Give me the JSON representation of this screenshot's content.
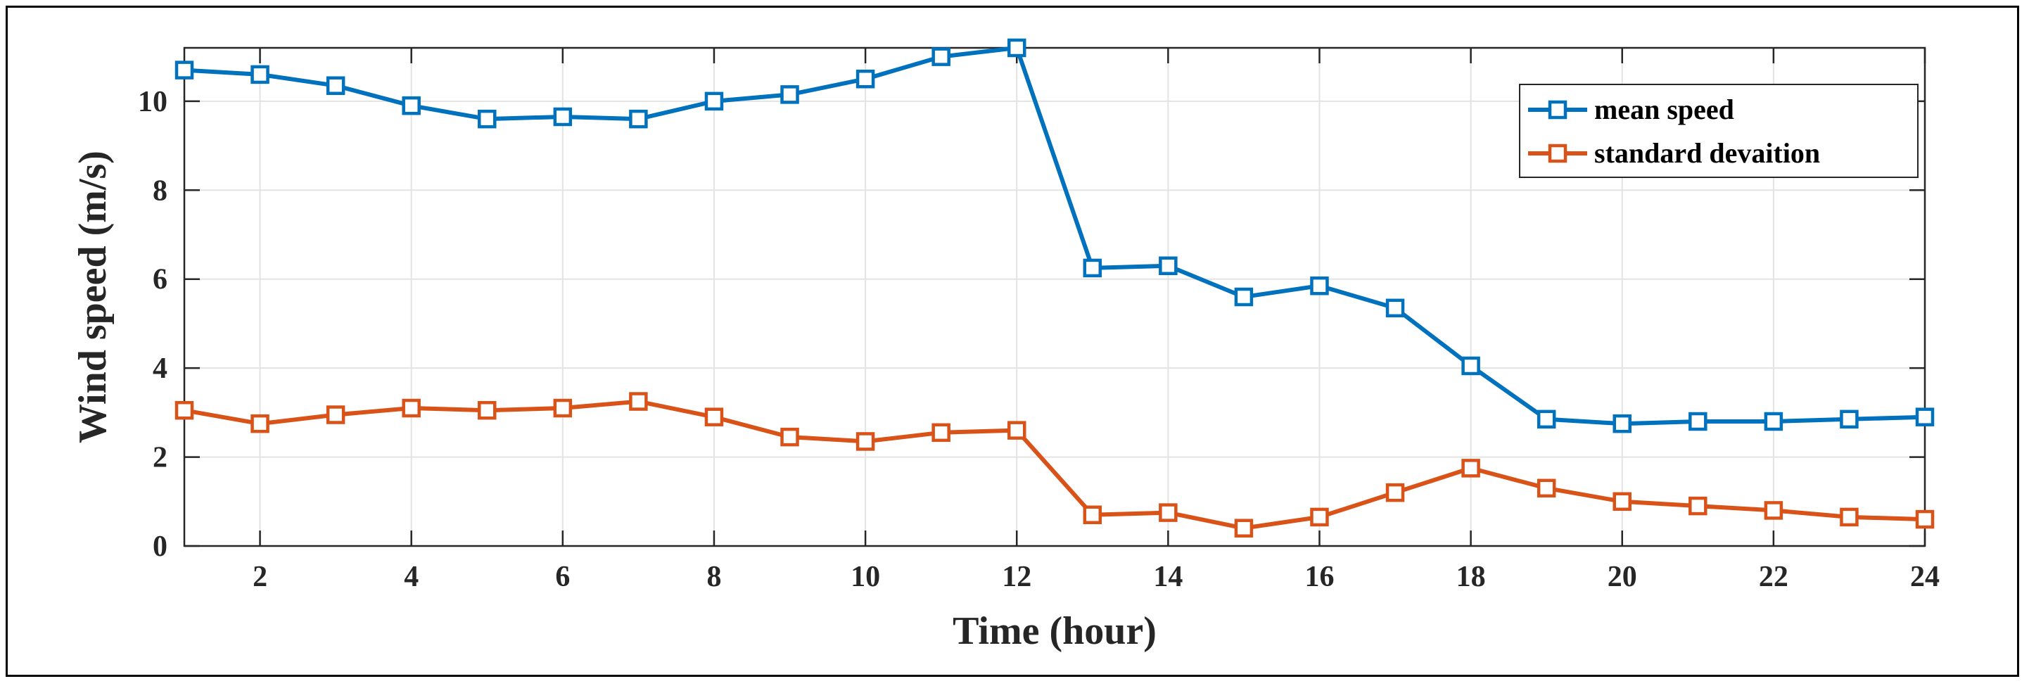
{
  "chart_data": {
    "type": "line",
    "title": "",
    "xlabel": "Time (hour)",
    "ylabel": "Wind speed (m/s)",
    "xlim": [
      1,
      24
    ],
    "ylim": [
      0,
      11.2
    ],
    "xticks": [
      2,
      4,
      6,
      8,
      10,
      12,
      14,
      16,
      18,
      20,
      22,
      24
    ],
    "yticks": [
      0,
      2,
      4,
      6,
      8,
      10
    ],
    "grid": true,
    "legend_position": "top-right",
    "x": [
      1,
      2,
      3,
      4,
      5,
      6,
      7,
      8,
      9,
      10,
      11,
      12,
      13,
      14,
      15,
      16,
      17,
      18,
      19,
      20,
      21,
      22,
      23,
      24
    ],
    "series": [
      {
        "name": "mean speed",
        "color": "#0072BD",
        "marker": "square",
        "values": [
          10.7,
          10.6,
          10.35,
          9.9,
          9.6,
          9.65,
          9.6,
          10.0,
          10.15,
          10.5,
          11.0,
          11.2,
          6.25,
          6.3,
          5.6,
          5.85,
          5.35,
          4.05,
          2.85,
          2.75,
          2.8,
          2.8,
          2.85,
          2.9
        ]
      },
      {
        "name": "standard devaition",
        "color": "#D95319",
        "marker": "square",
        "values": [
          3.05,
          2.75,
          2.95,
          3.1,
          3.05,
          3.1,
          3.25,
          2.9,
          2.45,
          2.35,
          2.55,
          2.6,
          0.7,
          0.75,
          0.4,
          0.65,
          1.2,
          1.75,
          1.3,
          1.0,
          0.9,
          0.8,
          0.65,
          0.6
        ]
      }
    ]
  }
}
